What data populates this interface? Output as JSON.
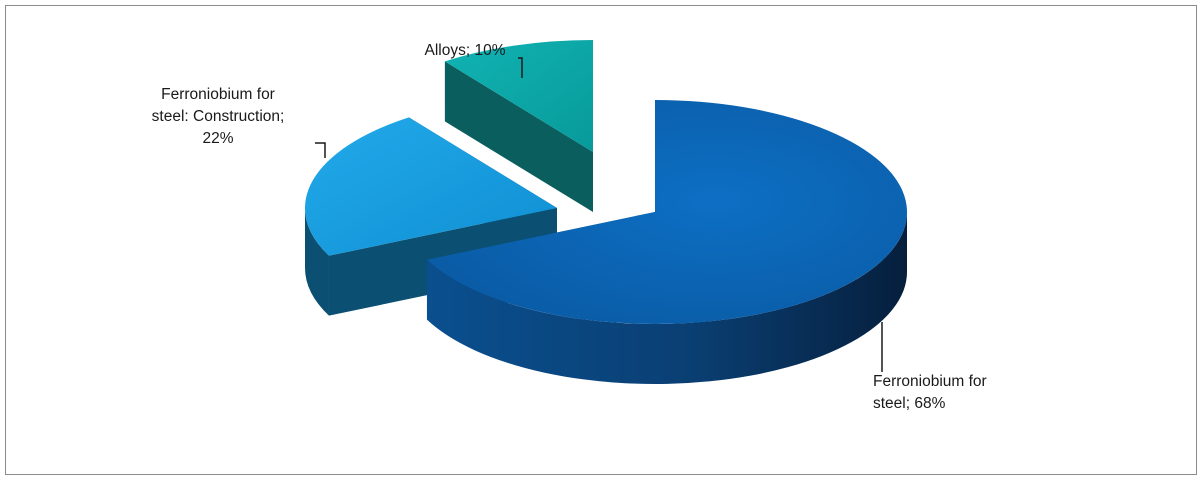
{
  "chart_data": {
    "type": "pie",
    "title": "",
    "series": [
      {
        "categories": [
          "Ferroniobium for steel",
          "Ferroniobium for steel: Construction",
          "Alloys"
        ],
        "values": [
          68,
          22,
          10
        ]
      }
    ],
    "labels": [
      {
        "lines": [
          "Ferroniobium for",
          "steel; 68%"
        ]
      },
      {
        "lines": [
          "Ferroniobium for",
          "steel: Construction;",
          "22%"
        ]
      },
      {
        "lines": [
          "Alloys; 10%"
        ]
      }
    ],
    "colors": {
      "slice_top": [
        "#0a63b2",
        "#1aa0e2",
        "#0aa8a8"
      ],
      "slice_side": [
        "#0a3f73",
        "#0b5072",
        "#0a5e5e"
      ]
    },
    "style": "3d-exploded",
    "legend": "none"
  }
}
